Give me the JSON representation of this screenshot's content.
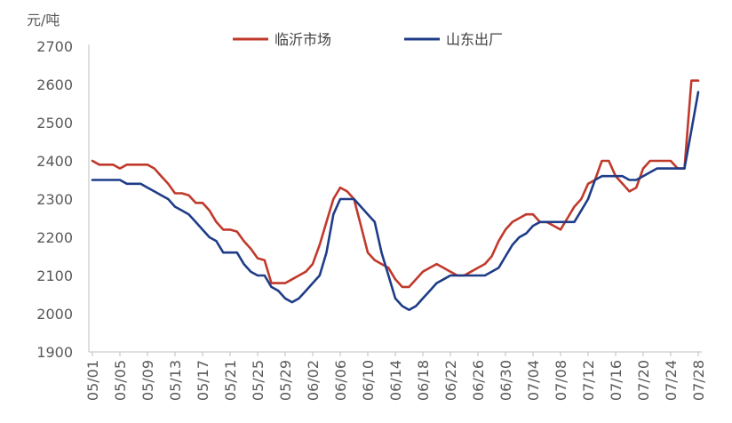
{
  "chart_data": {
    "type": "line",
    "unit_label": "元/吨",
    "ylim": [
      1900,
      2700
    ],
    "yticks": [
      1900,
      2000,
      2100,
      2200,
      2300,
      2400,
      2500,
      2600,
      2700
    ],
    "xtick_labels": [
      "05/01",
      "05/05",
      "05/09",
      "05/13",
      "05/17",
      "05/21",
      "05/25",
      "05/29",
      "06/02",
      "06/06",
      "06/10",
      "06/14",
      "06/18",
      "06/22",
      "06/26",
      "06/30",
      "07/04",
      "07/08",
      "07/12",
      "07/16",
      "07/20",
      "07/24",
      "07/28"
    ],
    "grid": false,
    "legend_position": "top",
    "x": [
      "05/01",
      "05/02",
      "05/03",
      "05/04",
      "05/05",
      "05/06",
      "05/07",
      "05/08",
      "05/09",
      "05/10",
      "05/11",
      "05/12",
      "05/13",
      "05/14",
      "05/15",
      "05/16",
      "05/17",
      "05/18",
      "05/19",
      "05/20",
      "05/21",
      "05/22",
      "05/23",
      "05/24",
      "05/25",
      "05/26",
      "05/27",
      "05/28",
      "05/29",
      "05/30",
      "05/31",
      "06/01",
      "06/02",
      "06/03",
      "06/04",
      "06/05",
      "06/06",
      "06/07",
      "06/08",
      "06/09",
      "06/10",
      "06/11",
      "06/12",
      "06/13",
      "06/14",
      "06/15",
      "06/16",
      "06/17",
      "06/18",
      "06/19",
      "06/20",
      "06/21",
      "06/22",
      "06/23",
      "06/24",
      "06/25",
      "06/26",
      "06/27",
      "06/28",
      "06/29",
      "06/30",
      "07/01",
      "07/02",
      "07/03",
      "07/04",
      "07/05",
      "07/06",
      "07/07",
      "07/08",
      "07/09",
      "07/10",
      "07/11",
      "07/12",
      "07/13",
      "07/14",
      "07/15",
      "07/16",
      "07/17",
      "07/18",
      "07/19",
      "07/20",
      "07/21",
      "07/22",
      "07/23",
      "07/24",
      "07/25",
      "07/26",
      "07/27",
      "07/28"
    ],
    "series": [
      {
        "name": "临沂市场",
        "color": "#c0392b",
        "values": [
          2400,
          2390,
          2390,
          2390,
          2380,
          2390,
          2390,
          2390,
          2390,
          2380,
          2360,
          2340,
          2315,
          2315,
          2310,
          2290,
          2290,
          2270,
          2240,
          2220,
          2220,
          2215,
          2190,
          2170,
          2145,
          2140,
          2080,
          2080,
          2080,
          2090,
          2100,
          2110,
          2130,
          2180,
          2240,
          2300,
          2330,
          2320,
          2300,
          2230,
          2160,
          2140,
          2130,
          2120,
          2090,
          2070,
          2070,
          2090,
          2110,
          2120,
          2130,
          2120,
          2110,
          2100,
          2100,
          2110,
          2120,
          2130,
          2150,
          2190,
          2220,
          2240,
          2250,
          2260,
          2260,
          2240,
          2240,
          2230,
          2220,
          2250,
          2280,
          2300,
          2340,
          2350,
          2400,
          2400,
          2360,
          2340,
          2320,
          2330,
          2380,
          2400,
          2400,
          2400,
          2400,
          2380,
          2380,
          2610,
          2610
        ]
      },
      {
        "name": "山东出厂",
        "color": "#1f3c88",
        "values": [
          2350,
          2350,
          2350,
          2350,
          2350,
          2340,
          2340,
          2340,
          2330,
          2320,
          2310,
          2300,
          2280,
          2270,
          2260,
          2240,
          2220,
          2200,
          2190,
          2160,
          2160,
          2160,
          2130,
          2110,
          2100,
          2100,
          2070,
          2060,
          2040,
          2030,
          2040,
          2060,
          2080,
          2100,
          2160,
          2260,
          2300,
          2300,
          2300,
          2280,
          2260,
          2240,
          2160,
          2100,
          2040,
          2020,
          2010,
          2020,
          2040,
          2060,
          2080,
          2090,
          2100,
          2100,
          2100,
          2100,
          2100,
          2100,
          2110,
          2120,
          2150,
          2180,
          2200,
          2210,
          2230,
          2240,
          2240,
          2240,
          2240,
          2240,
          2240,
          2270,
          2300,
          2350,
          2360,
          2360,
          2360,
          2360,
          2350,
          2350,
          2360,
          2370,
          2380,
          2380,
          2380,
          2380,
          2380,
          2480,
          2580
        ]
      }
    ]
  }
}
